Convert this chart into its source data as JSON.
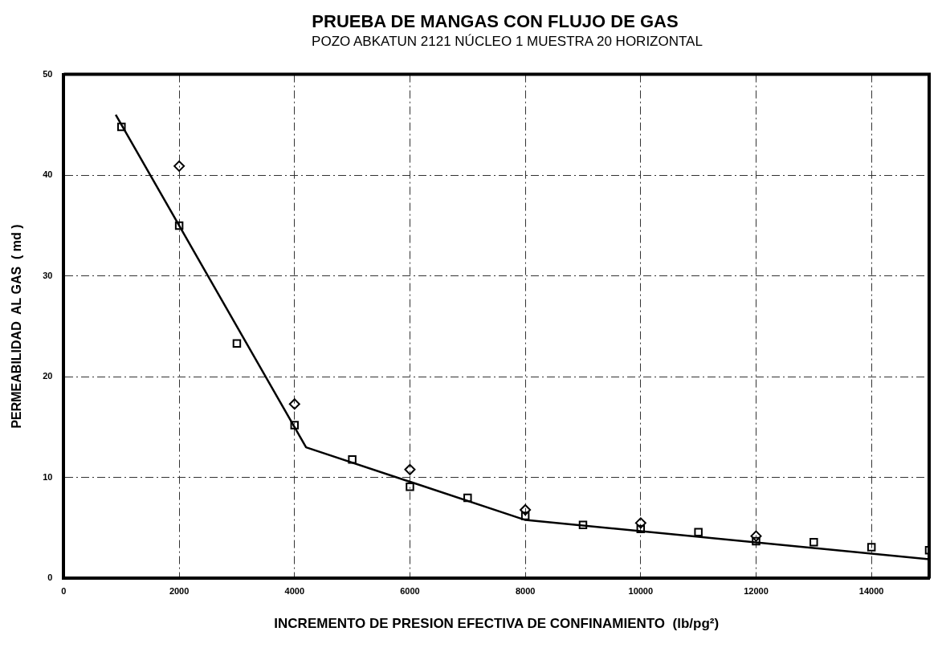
{
  "chart_data": {
    "type": "scatter",
    "title": "PRUEBA DE MANGAS CON FLUJO DE GAS",
    "subtitle": "POZO ABKATUN 2121 NÚCLEO 1  MUESTRA 20 HORIZONTAL",
    "xlabel": "INCREMENTO DE PRESION EFECTIVA DE CONFINAMIENTO  (lb/pg²)",
    "ylabel": "PERMEABILIDAD  AL GAS  ( md )",
    "xlim": [
      0,
      15000
    ],
    "xticks": [
      0,
      2000,
      4000,
      6000,
      8000,
      10000,
      12000,
      14000
    ],
    "ylim": [
      0,
      50
    ],
    "yticks": [
      0,
      10,
      20,
      30,
      40,
      50
    ],
    "grid": true,
    "line_style": "solid",
    "series": [
      {
        "type": "line",
        "color": "#000000",
        "marker": "none",
        "x": [
          900,
          4200,
          8000,
          15000
        ],
        "values": [
          46,
          13,
          5.8,
          1.9
        ]
      },
      {
        "color": "#000000",
        "marker": "square",
        "x": [
          1000,
          2000,
          3000,
          4000,
          5000,
          6000,
          7000,
          8000,
          9000,
          10000,
          11000,
          12000,
          13000,
          14000,
          15000
        ],
        "values": [
          44.8,
          35,
          23.3,
          15.2,
          11.8,
          9.1,
          8,
          6.2,
          5.3,
          4.9,
          4.6,
          3.7,
          3.6,
          3.1,
          2.8
        ]
      },
      {
        "color": "#000000",
        "marker": "diamond",
        "x": [
          2000,
          4000,
          6000,
          8000,
          10000,
          12000
        ],
        "values": [
          40.9,
          17.3,
          10.8,
          6.8,
          5.5,
          4.2
        ]
      }
    ]
  }
}
